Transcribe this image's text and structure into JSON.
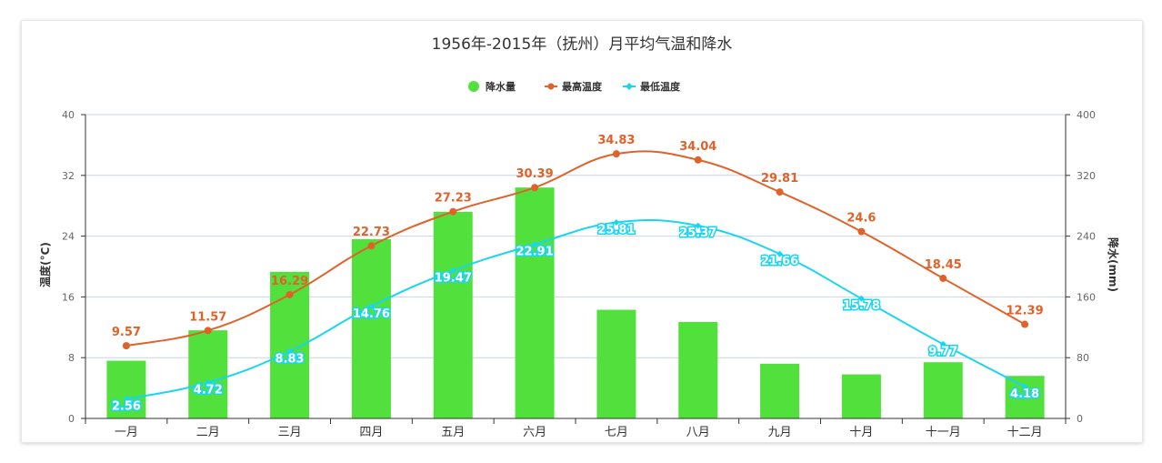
{
  "chart_data": {
    "type": "bar",
    "title": "1956年-2015年（抚州）月平均气温和降水",
    "categories": [
      "一月",
      "二月",
      "三月",
      "四月",
      "五月",
      "六月",
      "七月",
      "八月",
      "九月",
      "十月",
      "十一月",
      "十二月"
    ],
    "y_left": {
      "label": "温度(°C)",
      "range": [
        0,
        40
      ],
      "ticks": [
        0,
        8,
        16,
        24,
        32,
        40
      ]
    },
    "y_right": {
      "label": "降水(mm)",
      "range": [
        0,
        400
      ],
      "ticks": [
        0,
        80,
        160,
        240,
        320,
        400
      ]
    },
    "grid": true,
    "legend_position": "top",
    "series": [
      {
        "name": "降水量",
        "type": "bar",
        "axis": "right",
        "color": "#52e03c",
        "values": [
          76,
          116,
          193,
          236,
          272,
          304,
          143,
          127,
          72,
          58,
          74,
          56
        ]
      },
      {
        "name": "最高温度",
        "type": "line",
        "axis": "left",
        "color": "#e0622a",
        "values": [
          9.57,
          11.57,
          16.29,
          22.73,
          27.23,
          30.39,
          34.83,
          34.04,
          29.81,
          24.6,
          18.45,
          12.39
        ],
        "labels": [
          "9.57",
          "11.57",
          "16.29",
          "22.73",
          "27.23",
          "30.39",
          "34.83",
          "34.04",
          "29.81",
          "24.6",
          "18.45",
          "12.39"
        ]
      },
      {
        "name": "最低温度",
        "type": "line",
        "axis": "left",
        "color": "#19d6f0",
        "values": [
          2.56,
          4.72,
          8.83,
          14.76,
          19.47,
          22.91,
          25.81,
          25.37,
          21.66,
          15.78,
          9.77,
          4.18
        ],
        "labels": [
          "2.56",
          "4.72",
          "8.83",
          "14.76",
          "19.47",
          "22.91",
          "25.81",
          "25.37",
          "21.66",
          "15.78",
          "9.77",
          "4.18"
        ]
      }
    ]
  }
}
